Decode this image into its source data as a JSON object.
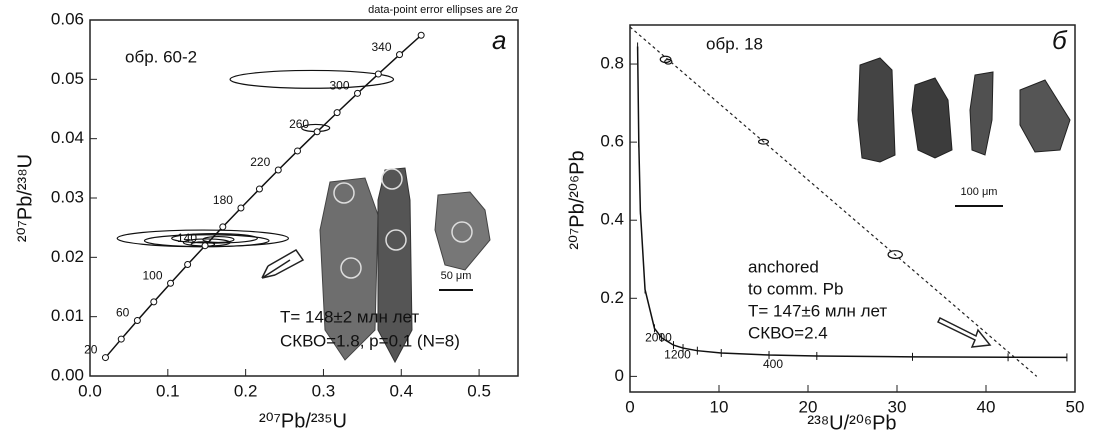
{
  "chart_data": [
    {
      "type": "concordia",
      "note_top": "data-point error ellipses are 2σ",
      "sample": "обр. 60-2",
      "panel": "а",
      "xlabel": "²⁰⁷Pb/²³⁵U",
      "ylabel": "²⁰⁷Pb/²³⁸U",
      "result_lines": [
        "T= 148±2 млн лет",
        "СКВО=1.8, p=0.1 (N=8)"
      ],
      "scale_label": "50 μm",
      "xlim": [
        0,
        0.55
      ],
      "xticks": [
        {
          "value": 0,
          "label": "0.0"
        },
        0.1,
        0.2,
        0.3,
        0.4,
        0.5
      ],
      "ylim": [
        0,
        0.06
      ],
      "yticks": [
        {
          "value": 0,
          "label": "0.00"
        },
        0.01,
        0.02,
        0.03,
        0.04,
        0.05,
        0.06
      ],
      "concordia": {
        "x": [
          0.01989,
          0.04017,
          0.06087,
          0.08198,
          0.1035,
          0.12545,
          0.14784,
          0.17067,
          0.19396,
          0.21771,
          0.24193,
          0.26664,
          0.29184,
          0.31755,
          0.34376,
          0.37049,
          0.39776,
          0.42556
        ],
        "y": [
          0.003107,
          0.006224,
          0.009351,
          0.01249,
          0.01563,
          0.01879,
          0.02196,
          0.02513,
          0.02832,
          0.03151,
          0.03472,
          0.03793,
          0.04116,
          0.04439,
          0.04764,
          0.05089,
          0.05416,
          0.05743
        ],
        "labels": [
          20,
          null,
          60,
          null,
          100,
          null,
          140,
          null,
          180,
          null,
          220,
          null,
          260,
          null,
          300,
          null,
          340,
          null
        ]
      },
      "ellipses": {
        "x": [
          0.285,
          0.29,
          0.145,
          0.15,
          0.16,
          0.15,
          0.165,
          0.145
        ],
        "y": [
          0.05,
          0.0418,
          0.0232,
          0.0228,
          0.0232,
          0.0225,
          0.023,
          0.0222
        ],
        "x_err": [
          0.105,
          0.018,
          0.11,
          0.08,
          0.055,
          0.03,
          0.02,
          0.015
        ],
        "y_err": [
          0.0015,
          0.0006,
          0.0014,
          0.001,
          0.0008,
          0.0006,
          0.0005,
          0.0004
        ]
      }
    },
    {
      "type": "tera-wasserburg",
      "sample": "обр. 18",
      "panel": "б",
      "xlabel": "²³⁸U/²⁰⁶Pb",
      "ylabel": "²⁰⁷Pb/²⁰⁶Pb",
      "result_lines": [
        "anchored",
        "to comm. Pb",
        "T= 147±6 млн лет",
        "СКВО=2.4"
      ],
      "scale_label": "100 μm",
      "xlim": [
        0,
        50
      ],
      "xticks": [
        0,
        10,
        20,
        30,
        40,
        50
      ],
      "ylim": [
        -0.04,
        0.9
      ],
      "yticks": [
        0,
        0.2,
        0.4,
        0.6,
        0.8
      ],
      "concordia": {
        "x": [
          0.853,
          0.99,
          1.163,
          1.6875,
          2.749,
          3.55,
          4.888,
          5.958,
          7.568,
          10.252,
          15.62,
          20.99,
          31.74,
          42.48,
          49.09
        ],
        "y": [
          0.845,
          0.5967,
          0.4249,
          0.2226,
          0.123,
          0.0987,
          0.0801,
          0.0725,
          0.0658,
          0.0599,
          0.0547,
          0.0523,
          0.0501,
          0.049,
          0.0486
        ],
        "labels": [
          null,
          null,
          null,
          null,
          2000,
          null,
          1200,
          null,
          null,
          null,
          400,
          null,
          null,
          null,
          null
        ]
      },
      "discordia": {
        "x": [
          0,
          45.7
        ],
        "y": [
          0.895,
          0
        ]
      },
      "ellipses": {
        "x": [
          4.0,
          4.3,
          15.0,
          29.8
        ],
        "y": [
          0.812,
          0.806,
          0.601,
          0.312
        ],
        "x_err": [
          0.6,
          0.4,
          0.55,
          0.8
        ],
        "y_err": [
          0.008,
          0.006,
          0.006,
          0.01
        ]
      }
    }
  ]
}
